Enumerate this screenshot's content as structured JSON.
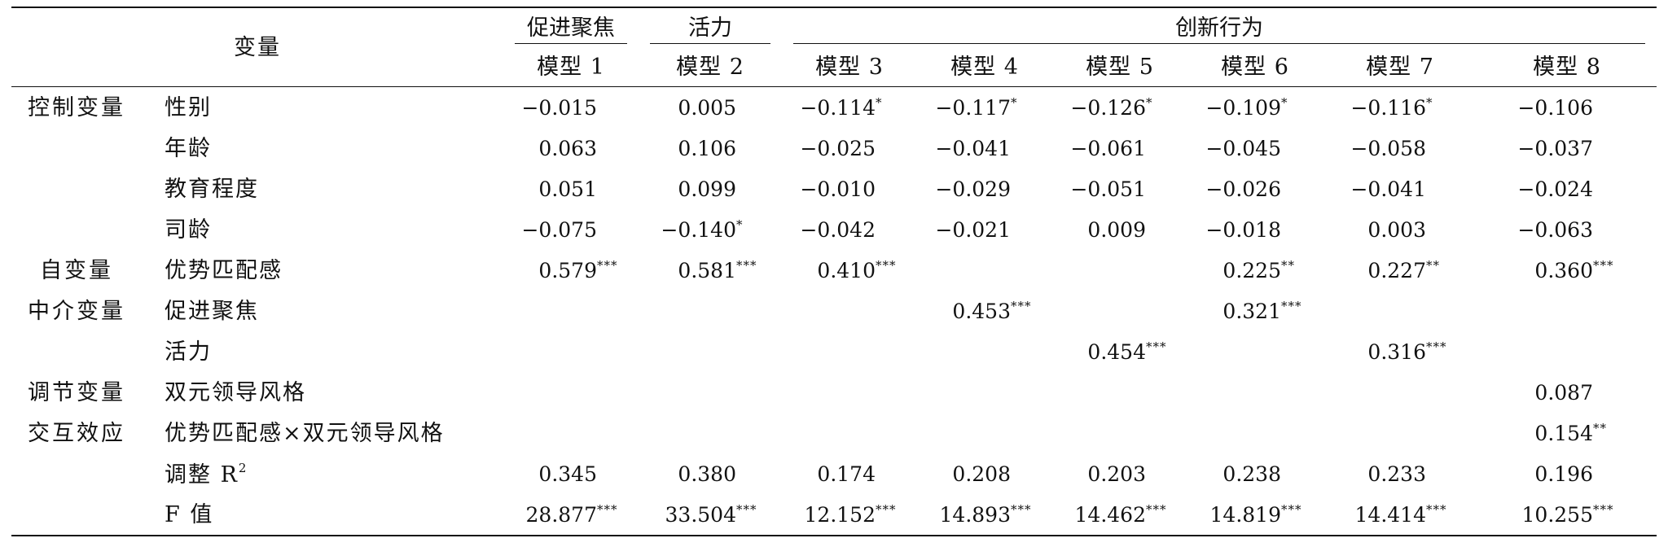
{
  "table": {
    "header": {
      "variable_label": "变量",
      "groups": [
        {
          "label": "促进聚焦"
        },
        {
          "label": "活力"
        },
        {
          "label": "创新行为"
        }
      ],
      "models": [
        "模型 1",
        "模型 2",
        "模型 3",
        "模型 4",
        "模型 5",
        "模型 6",
        "模型 7",
        "模型 8"
      ]
    },
    "rows": [
      {
        "group": "控制变量",
        "variable": "性别",
        "cells": [
          {
            "v": "−0.015",
            "s": ""
          },
          {
            "v": "0.005",
            "s": ""
          },
          {
            "v": "−0.114",
            "s": "*"
          },
          {
            "v": "−0.117",
            "s": "*"
          },
          {
            "v": "−0.126",
            "s": "*"
          },
          {
            "v": "−0.109",
            "s": "*"
          },
          {
            "v": "−0.116",
            "s": "*"
          },
          {
            "v": "−0.106",
            "s": ""
          }
        ]
      },
      {
        "group": "",
        "variable": "年龄",
        "cells": [
          {
            "v": "0.063",
            "s": ""
          },
          {
            "v": "0.106",
            "s": ""
          },
          {
            "v": "−0.025",
            "s": ""
          },
          {
            "v": "−0.041",
            "s": ""
          },
          {
            "v": "−0.061",
            "s": ""
          },
          {
            "v": "−0.045",
            "s": ""
          },
          {
            "v": "−0.058",
            "s": ""
          },
          {
            "v": "−0.037",
            "s": ""
          }
        ]
      },
      {
        "group": "",
        "variable": "教育程度",
        "cells": [
          {
            "v": "0.051",
            "s": ""
          },
          {
            "v": "0.099",
            "s": ""
          },
          {
            "v": "−0.010",
            "s": ""
          },
          {
            "v": "−0.029",
            "s": ""
          },
          {
            "v": "−0.051",
            "s": ""
          },
          {
            "v": "−0.026",
            "s": ""
          },
          {
            "v": "−0.041",
            "s": ""
          },
          {
            "v": "−0.024",
            "s": ""
          }
        ]
      },
      {
        "group": "",
        "variable": "司龄",
        "cells": [
          {
            "v": "−0.075",
            "s": ""
          },
          {
            "v": "−0.140",
            "s": "*"
          },
          {
            "v": "−0.042",
            "s": ""
          },
          {
            "v": "−0.021",
            "s": ""
          },
          {
            "v": "0.009",
            "s": ""
          },
          {
            "v": "−0.018",
            "s": ""
          },
          {
            "v": "0.003",
            "s": ""
          },
          {
            "v": "−0.063",
            "s": ""
          }
        ]
      },
      {
        "group": "自变量",
        "variable": "优势匹配感",
        "cells": [
          {
            "v": "0.579",
            "s": "***"
          },
          {
            "v": "0.581",
            "s": "***"
          },
          {
            "v": "0.410",
            "s": "***"
          },
          {
            "v": "",
            "s": ""
          },
          {
            "v": "",
            "s": ""
          },
          {
            "v": "0.225",
            "s": "**"
          },
          {
            "v": "0.227",
            "s": "**"
          },
          {
            "v": "0.360",
            "s": "***"
          }
        ]
      },
      {
        "group": "中介变量",
        "variable": "促进聚焦",
        "cells": [
          {
            "v": "",
            "s": ""
          },
          {
            "v": "",
            "s": ""
          },
          {
            "v": "",
            "s": ""
          },
          {
            "v": "0.453",
            "s": "***"
          },
          {
            "v": "",
            "s": ""
          },
          {
            "v": "0.321",
            "s": "***"
          },
          {
            "v": "",
            "s": ""
          },
          {
            "v": "",
            "s": ""
          }
        ]
      },
      {
        "group": "",
        "variable": "活力",
        "cells": [
          {
            "v": "",
            "s": ""
          },
          {
            "v": "",
            "s": ""
          },
          {
            "v": "",
            "s": ""
          },
          {
            "v": "",
            "s": ""
          },
          {
            "v": "0.454",
            "s": "***"
          },
          {
            "v": "",
            "s": ""
          },
          {
            "v": "0.316",
            "s": "***"
          },
          {
            "v": "",
            "s": ""
          }
        ]
      },
      {
        "group": "调节变量",
        "variable": "双元领导风格",
        "cells": [
          {
            "v": "",
            "s": ""
          },
          {
            "v": "",
            "s": ""
          },
          {
            "v": "",
            "s": ""
          },
          {
            "v": "",
            "s": ""
          },
          {
            "v": "",
            "s": ""
          },
          {
            "v": "",
            "s": ""
          },
          {
            "v": "",
            "s": ""
          },
          {
            "v": "0.087",
            "s": ""
          }
        ]
      },
      {
        "group": "交互效应",
        "variable": "优势匹配感×双元领导风格",
        "cells": [
          {
            "v": "",
            "s": ""
          },
          {
            "v": "",
            "s": ""
          },
          {
            "v": "",
            "s": ""
          },
          {
            "v": "",
            "s": ""
          },
          {
            "v": "",
            "s": ""
          },
          {
            "v": "",
            "s": ""
          },
          {
            "v": "",
            "s": ""
          },
          {
            "v": "0.154",
            "s": "**"
          }
        ]
      },
      {
        "group": "",
        "variable": "调整 R",
        "variable_sup": "2",
        "cells": [
          {
            "v": "0.345",
            "s": ""
          },
          {
            "v": "0.380",
            "s": ""
          },
          {
            "v": "0.174",
            "s": ""
          },
          {
            "v": "0.208",
            "s": ""
          },
          {
            "v": "0.203",
            "s": ""
          },
          {
            "v": "0.238",
            "s": ""
          },
          {
            "v": "0.233",
            "s": ""
          },
          {
            "v": "0.196",
            "s": ""
          }
        ]
      },
      {
        "group": "",
        "variable": "F 值",
        "cells": [
          {
            "v": "28.877",
            "s": "***"
          },
          {
            "v": "33.504",
            "s": "***"
          },
          {
            "v": "12.152",
            "s": "***"
          },
          {
            "v": "14.893",
            "s": "***"
          },
          {
            "v": "14.462",
            "s": "***"
          },
          {
            "v": "14.819",
            "s": "***"
          },
          {
            "v": "14.414",
            "s": "***"
          },
          {
            "v": "10.255",
            "s": "***"
          }
        ]
      }
    ]
  }
}
